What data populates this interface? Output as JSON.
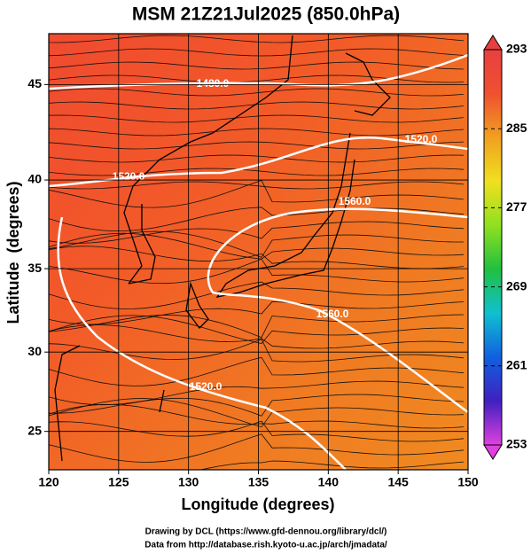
{
  "chart_data": {
    "type": "contour-map",
    "title": "MSM 21Z21Jul2025 (850.0hPa)",
    "xlabel": "Longitude (degrees)",
    "ylabel": "Latitude  (degrees)",
    "projection": "mercator",
    "xlim": [
      120,
      150
    ],
    "ylim": [
      22.5,
      47.5
    ],
    "xticks": [
      120,
      125,
      130,
      135,
      140,
      145,
      150
    ],
    "yticks": [
      25,
      30,
      35,
      40,
      45
    ],
    "grid": true,
    "contours": [
      {
        "value": 1480,
        "label": "1480.0"
      },
      {
        "value": 1520,
        "label": "1520.0"
      },
      {
        "value": 1560,
        "label": "1560.0"
      }
    ],
    "colorbar": {
      "clim": [
        253,
        293
      ],
      "ticks": [
        253,
        261,
        269,
        277,
        285,
        293
      ],
      "colormap": [
        "#e040e0",
        "#4020c0",
        "#1060e0",
        "#10c0d0",
        "#20c040",
        "#90e020",
        "#f0e020",
        "#f0a020",
        "#f05030",
        "#e84040"
      ]
    },
    "footer": [
      "Drawing by DCL (https://www.gfd-dennou.org/library/dcl/)",
      "Data from http://database.rish.kyoto-u.ac.jp/arch/jmadata/"
    ]
  }
}
